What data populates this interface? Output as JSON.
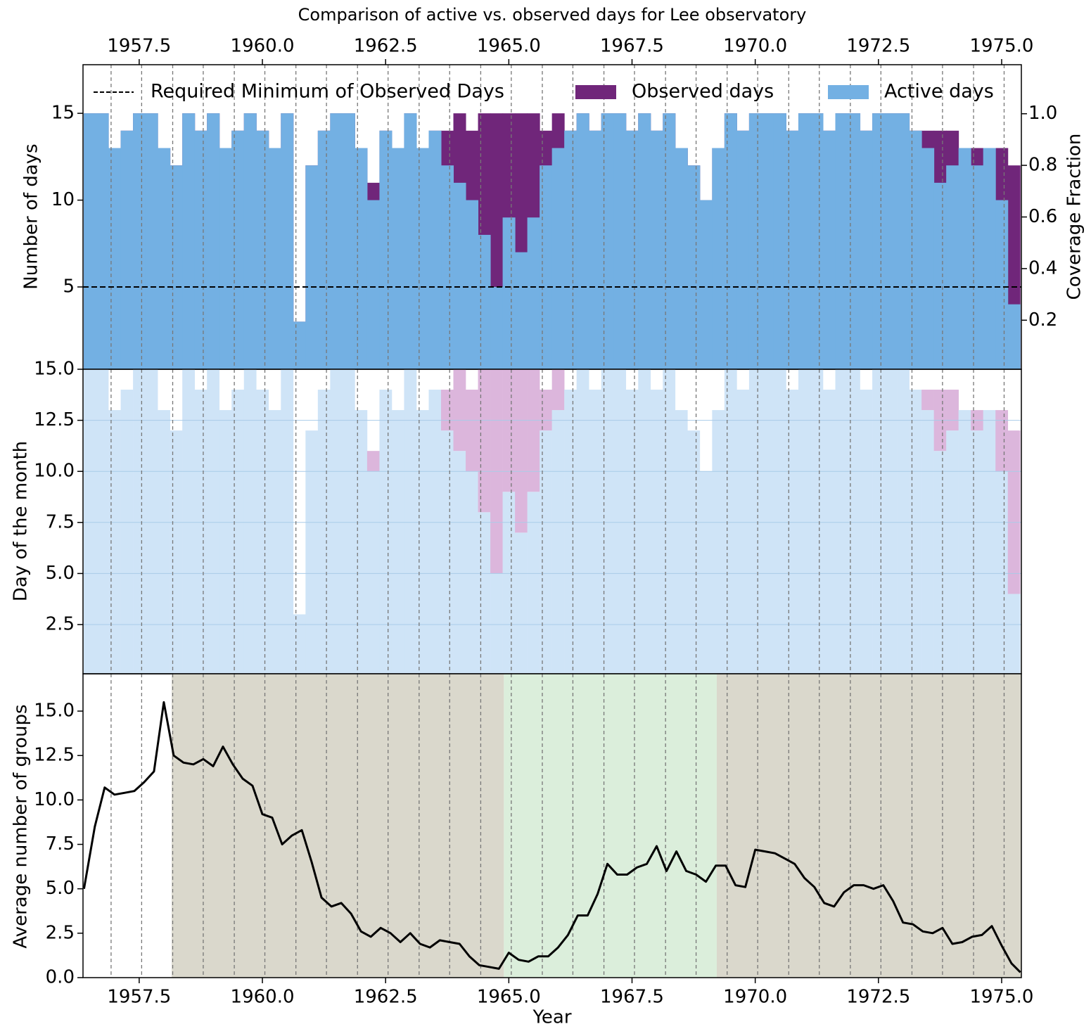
{
  "chart_data": [
    {
      "type": "bar",
      "title": "Comparison of active vs. observed days for Lee observatory",
      "y_label": "Number of days",
      "y2_label": "Coverage Fraction",
      "x": [
        1956.5,
        1956.75,
        1957.0,
        1957.25,
        1957.5,
        1957.75,
        1958.0,
        1958.25,
        1958.5,
        1958.75,
        1959.0,
        1959.25,
        1959.5,
        1959.75,
        1960.0,
        1960.25,
        1960.5,
        1960.75,
        1961.0,
        1961.25,
        1961.5,
        1961.75,
        1962.0,
        1962.25,
        1962.5,
        1962.75,
        1963.0,
        1963.25,
        1963.5,
        1963.75,
        1964.0,
        1964.25,
        1964.5,
        1964.75,
        1965.0,
        1965.25,
        1965.5,
        1965.75,
        1966.0,
        1966.25,
        1966.5,
        1966.75,
        1967.0,
        1967.25,
        1967.5,
        1967.75,
        1968.0,
        1968.25,
        1968.5,
        1968.75,
        1969.0,
        1969.25,
        1969.5,
        1969.75,
        1970.0,
        1970.25,
        1970.5,
        1970.75,
        1971.0,
        1971.25,
        1971.5,
        1971.75,
        1972.0,
        1972.25,
        1972.5,
        1972.75,
        1973.0,
        1973.25,
        1973.5,
        1973.75,
        1974.0,
        1974.25,
        1974.5,
        1974.75,
        1975.0,
        1975.25
      ],
      "series": [
        {
          "name": "Observed days",
          "color": "#70267a",
          "values": [
            15,
            15,
            13,
            14,
            15,
            15,
            13,
            12,
            15,
            14,
            15,
            13,
            14,
            15,
            14,
            13,
            15,
            3,
            12,
            14,
            15,
            15,
            13,
            11,
            14,
            13,
            15,
            13,
            14,
            14,
            15,
            14,
            15,
            15,
            15,
            15,
            15,
            14,
            15,
            14,
            15,
            14,
            15,
            15,
            14,
            15,
            14,
            15,
            13,
            12,
            10,
            13,
            15,
            14,
            15,
            15,
            15,
            14,
            15,
            15,
            14,
            15,
            15,
            14,
            15,
            15,
            15,
            14,
            14,
            14,
            14,
            13,
            13,
            13,
            13,
            12
          ]
        },
        {
          "name": "Active days",
          "color": "#73b0e3",
          "values": [
            15,
            15,
            13,
            14,
            15,
            15,
            13,
            12,
            15,
            14,
            15,
            13,
            14,
            15,
            14,
            13,
            15,
            3,
            12,
            14,
            15,
            15,
            13,
            10,
            14,
            13,
            15,
            13,
            14,
            12,
            11,
            10,
            8,
            5,
            9,
            7,
            9,
            12,
            13,
            14,
            15,
            14,
            15,
            15,
            14,
            15,
            14,
            15,
            13,
            12,
            10,
            13,
            15,
            14,
            15,
            15,
            15,
            14,
            15,
            15,
            14,
            15,
            15,
            14,
            15,
            15,
            15,
            14,
            13,
            11,
            12,
            13,
            12,
            13,
            10,
            4
          ]
        }
      ],
      "reference_line": {
        "name": "Required Minimum of Observed Days",
        "value": 5
      },
      "separators": [
        1956.93,
        1957.55,
        1958.18,
        1958.8,
        1959.43,
        1960.05,
        1960.68,
        1961.3,
        1961.93,
        1962.55,
        1963.18,
        1963.8,
        1964.43,
        1965.05,
        1965.68,
        1966.3,
        1966.93,
        1967.55,
        1968.18,
        1968.8,
        1969.43,
        1970.05,
        1970.68,
        1971.3,
        1971.93,
        1972.55,
        1973.18,
        1973.8,
        1974.43,
        1975.05
      ],
      "xlim": [
        1956.36,
        1975.4
      ],
      "xticks": [
        {
          "value": 1957.5,
          "label": "1957.5"
        },
        {
          "value": 1960,
          "label": "1960.0"
        },
        {
          "value": 1962.5,
          "label": "1962.5"
        },
        {
          "value": 1965,
          "label": "1965.0"
        },
        {
          "value": 1967.5,
          "label": "1967.5"
        },
        {
          "value": 1970,
          "label": "1970.0"
        },
        {
          "value": 1972.5,
          "label": "1972.5"
        },
        {
          "value": 1975,
          "label": "1975.0"
        }
      ],
      "ylim": [
        0.26,
        17.8
      ],
      "yticks": [
        5,
        10,
        15
      ],
      "y2lim": [
        0.01,
        1.19
      ],
      "y2ticks": [
        0.2,
        0.4,
        0.6,
        0.8,
        {
          "value": 1,
          "label": "1.0"
        }
      ],
      "legend": "upper center"
    },
    {
      "type": "day-grid",
      "y_label": "Day of the month",
      "source": 0,
      "xlim": [
        1956.36,
        1975.4
      ],
      "ylim": [
        0.09,
        15
      ],
      "yticks": [
        {
          "value": 2.5,
          "label": "2.5"
        },
        {
          "value": 5,
          "label": "5.0"
        },
        7.5,
        {
          "value": 10,
          "label": "10.0"
        },
        12.5,
        {
          "value": 15,
          "label": "15.0"
        }
      ],
      "colors": [
        "#cfe4f7",
        "#dcb6dc"
      ]
    },
    {
      "type": "line",
      "x_label": "Year",
      "y_label": "Average number of groups",
      "color": "#000000",
      "x": [
        1956.38,
        1956.6,
        1956.8,
        1957.0,
        1957.2,
        1957.4,
        1957.6,
        1957.8,
        1958.0,
        1958.2,
        1958.4,
        1958.6,
        1958.8,
        1959.0,
        1959.2,
        1959.4,
        1959.6,
        1959.8,
        1960.0,
        1960.2,
        1960.4,
        1960.6,
        1960.8,
        1961.0,
        1961.2,
        1961.4,
        1961.6,
        1961.8,
        1962.0,
        1962.2,
        1962.4,
        1962.6,
        1962.8,
        1963.0,
        1963.2,
        1963.4,
        1963.6,
        1963.8,
        1964.0,
        1964.2,
        1964.4,
        1964.6,
        1964.8,
        1965.0,
        1965.2,
        1965.4,
        1965.6,
        1965.8,
        1966.0,
        1966.2,
        1966.4,
        1966.6,
        1966.8,
        1967.0,
        1967.2,
        1967.4,
        1967.6,
        1967.8,
        1968.0,
        1968.2,
        1968.4,
        1968.6,
        1968.8,
        1969.0,
        1969.2,
        1969.4,
        1969.6,
        1969.8,
        1970.0,
        1970.2,
        1970.4,
        1970.6,
        1970.8,
        1971.0,
        1971.2,
        1971.4,
        1971.6,
        1971.8,
        1972.0,
        1972.2,
        1972.4,
        1972.6,
        1972.8,
        1973.0,
        1973.2,
        1973.4,
        1973.6,
        1973.8,
        1974.0,
        1974.2,
        1974.4,
        1974.6,
        1974.8,
        1975.0,
        1975.2,
        1975.38
      ],
      "values": [
        5.0,
        8.5,
        10.7,
        10.3,
        10.4,
        10.5,
        11.0,
        11.6,
        15.5,
        12.5,
        12.1,
        12.0,
        12.3,
        11.9,
        13.0,
        12.0,
        11.2,
        10.8,
        9.2,
        9.0,
        7.5,
        8.0,
        8.3,
        6.5,
        4.5,
        4.0,
        4.2,
        3.6,
        2.6,
        2.3,
        2.8,
        2.5,
        2.0,
        2.5,
        1.9,
        1.7,
        2.1,
        2.0,
        1.9,
        1.2,
        0.7,
        0.6,
        0.5,
        1.4,
        1.0,
        0.9,
        1.2,
        1.2,
        1.7,
        2.4,
        3.5,
        3.5,
        4.7,
        6.4,
        5.8,
        5.8,
        6.2,
        6.4,
        7.4,
        6.0,
        7.1,
        6.0,
        5.8,
        5.4,
        6.3,
        6.3,
        5.2,
        5.1,
        7.2,
        7.1,
        7.0,
        6.7,
        6.4,
        5.6,
        5.1,
        4.2,
        4.0,
        4.8,
        5.2,
        5.2,
        5.0,
        5.2,
        4.3,
        3.1,
        3.0,
        2.6,
        2.5,
        2.8,
        1.9,
        2.0,
        2.3,
        2.4,
        2.9,
        1.8,
        0.8,
        0.3
      ],
      "regions": [
        {
          "start": 1958.16,
          "end": 1964.9,
          "color": "#dad8cc"
        },
        {
          "start": 1964.9,
          "end": 1969.22,
          "color": "#dbeedb"
        },
        {
          "start": 1969.22,
          "end": 1975.4,
          "color": "#dad8cc"
        }
      ],
      "xlim": [
        1956.36,
        1975.4
      ],
      "xticks": [
        {
          "value": 1957.5,
          "label": "1957.5"
        },
        {
          "value": 1960,
          "label": "1960.0"
        },
        {
          "value": 1962.5,
          "label": "1962.5"
        },
        {
          "value": 1965,
          "label": "1965.0"
        },
        {
          "value": 1967.5,
          "label": "1967.5"
        },
        {
          "value": 1970,
          "label": "1970.0"
        },
        {
          "value": 1972.5,
          "label": "1972.5"
        },
        {
          "value": 1975,
          "label": "1975.0"
        }
      ],
      "ylim": [
        0,
        17.1
      ],
      "yticks": [
        {
          "value": 0,
          "label": "0.0"
        },
        2.5,
        {
          "value": 5,
          "label": "5.0"
        },
        7.5,
        {
          "value": 10,
          "label": "10.0"
        },
        12.5,
        {
          "value": 15,
          "label": "15.0"
        }
      ]
    }
  ]
}
